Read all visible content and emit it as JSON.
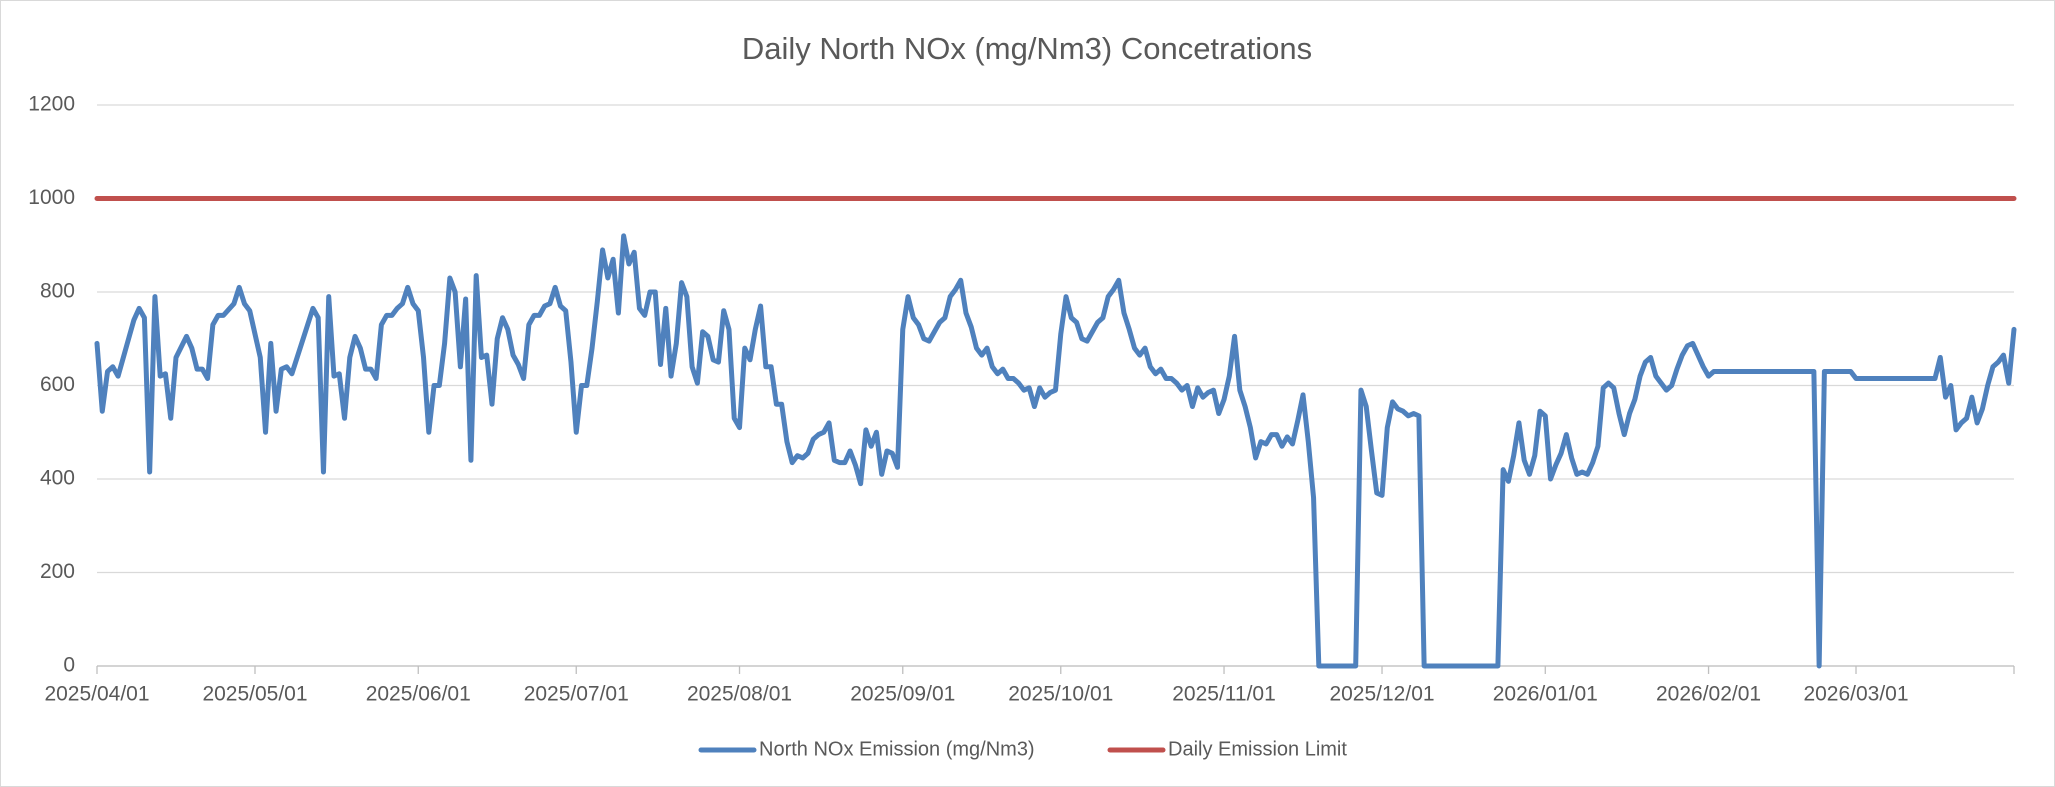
{
  "chart_data": {
    "type": "line",
    "title": "Daily North NOx (mg/Nm3) Concetrations",
    "xlim": [
      "2025/04/01",
      "2026/03/31"
    ],
    "xticks": [
      "2025/04/01",
      "2025/05/01",
      "2025/06/01",
      "2025/07/01",
      "2025/08/01",
      "2025/09/01",
      "2025/10/01",
      "2025/11/01",
      "2025/12/01",
      "2026/01/01",
      "2026/02/01",
      "2026/03/01"
    ],
    "ylim": [
      0,
      1200
    ],
    "yticks": [
      0,
      200,
      400,
      600,
      800,
      1000,
      1200
    ],
    "grid": true,
    "legend": "bottom",
    "series": [
      {
        "name": "North NOx Emission (mg/Nm3)",
        "color": "#4f81bd",
        "x": [
          "2025/04/01",
          "2025/04/02",
          "2025/04/03",
          "2025/04/04",
          "2025/04/05",
          "2025/04/07",
          "2025/04/08",
          "2025/04/09",
          "2025/04/10",
          "2025/04/11",
          "2025/04/12",
          "2025/04/13",
          "2025/04/14",
          "2025/04/15",
          "2025/04/16",
          "2025/04/18",
          "2025/04/19",
          "2025/04/20",
          "2025/04/21",
          "2025/04/22",
          "2025/04/23",
          "2025/04/24",
          "2025/04/25",
          "2025/04/27",
          "2025/04/28",
          "2025/04/29",
          "2025/04/30",
          "2025/05/02",
          "2025/05/03",
          "2025/05/04",
          "2025/05/05",
          "2025/05/06",
          "2025/05/07",
          "2025/05/08",
          "2025/05/09",
          "2025/05/11",
          "2025/05/12",
          "2025/05/13",
          "2025/05/14",
          "2025/05/15",
          "2025/05/16",
          "2025/05/17",
          "2025/05/18",
          "2025/05/19",
          "2025/05/20",
          "2025/05/21",
          "2025/05/22",
          "2025/05/23",
          "2025/05/24",
          "2025/05/25",
          "2025/05/26",
          "2025/05/27",
          "2025/05/28",
          "2025/05/29",
          "2025/05/30",
          "2025/05/31",
          "2025/06/01",
          "2025/06/02",
          "2025/06/03",
          "2025/06/04",
          "2025/06/05",
          "2025/06/06",
          "2025/06/07",
          "2025/06/08",
          "2025/06/09",
          "2025/06/10",
          "2025/06/11",
          "2025/06/12",
          "2025/06/13",
          "2025/06/14",
          "2025/06/15",
          "2025/06/16",
          "2025/06/17",
          "2025/06/18",
          "2025/06/19",
          "2025/06/20",
          "2025/06/21",
          "2025/06/22",
          "2025/06/23",
          "2025/06/24",
          "2025/06/25",
          "2025/06/26",
          "2025/06/27",
          "2025/06/28",
          "2025/06/29",
          "2025/06/30",
          "2025/07/01",
          "2025/07/02",
          "2025/07/03",
          "2025/07/04",
          "2025/07/05",
          "2025/07/06",
          "2025/07/07",
          "2025/07/08",
          "2025/07/09",
          "2025/07/10",
          "2025/07/11",
          "2025/07/12",
          "2025/07/13",
          "2025/07/14",
          "2025/07/15",
          "2025/07/16",
          "2025/07/17",
          "2025/07/18",
          "2025/07/19",
          "2025/07/20",
          "2025/07/21",
          "2025/07/22",
          "2025/07/23",
          "2025/07/24",
          "2025/07/25",
          "2025/07/26",
          "2025/07/27",
          "2025/07/28",
          "2025/07/29",
          "2025/07/30",
          "2025/07/31",
          "2025/08/01",
          "2025/08/02",
          "2025/08/03",
          "2025/08/04",
          "2025/08/05",
          "2025/08/06",
          "2025/08/07",
          "2025/08/08",
          "2025/08/09",
          "2025/08/10",
          "2025/08/11",
          "2025/08/12",
          "2025/08/13",
          "2025/08/14",
          "2025/08/15",
          "2025/08/16",
          "2025/08/17",
          "2025/08/18",
          "2025/08/19",
          "2025/08/20",
          "2025/08/21",
          "2025/08/22",
          "2025/08/23",
          "2025/08/24",
          "2025/08/25",
          "2025/08/26",
          "2025/08/27",
          "2025/08/28",
          "2025/08/29",
          "2025/08/30",
          "2025/08/31",
          "2025/09/01",
          "2025/09/02",
          "2025/09/03",
          "2025/09/04",
          "2025/09/05",
          "2025/09/06",
          "2025/09/07",
          "2025/09/08",
          "2025/09/09",
          "2025/09/10",
          "2025/09/11",
          "2025/09/12",
          "2025/09/13",
          "2025/09/14",
          "2025/09/15",
          "2025/09/16",
          "2025/09/17",
          "2025/09/18",
          "2025/09/19",
          "2025/09/20",
          "2025/09/21",
          "2025/09/22",
          "2025/09/23",
          "2025/09/24",
          "2025/09/25",
          "2025/09/26",
          "2025/09/27",
          "2025/09/28",
          "2025/09/29",
          "2025/09/30",
          "2025/10/01",
          "2025/10/02",
          "2025/10/03",
          "2025/10/04",
          "2025/10/05",
          "2025/10/06",
          "2025/10/07",
          "2025/10/08",
          "2025/10/09",
          "2025/10/10",
          "2025/10/11",
          "2025/10/12",
          "2025/10/13",
          "2025/10/14",
          "2025/10/15",
          "2025/10/16",
          "2025/10/17",
          "2025/10/18",
          "2025/10/19",
          "2025/10/20",
          "2025/10/21",
          "2025/10/22",
          "2025/10/23",
          "2025/10/24",
          "2025/10/25",
          "2025/10/26",
          "2025/10/27",
          "2025/10/28",
          "2025/10/29",
          "2025/10/30",
          "2025/10/31",
          "2025/11/01",
          "2025/11/02",
          "2025/11/03",
          "2025/11/04",
          "2025/11/05",
          "2025/11/06",
          "2025/11/07",
          "2025/11/08",
          "2025/11/09",
          "2025/11/10",
          "2025/11/11",
          "2025/11/12",
          "2025/11/13",
          "2025/11/14",
          "2025/11/15",
          "2025/11/16",
          "2025/11/17",
          "2025/11/18",
          "2025/11/19",
          "2025/11/26",
          "2025/11/27",
          "2025/11/28",
          "2025/11/29",
          "2025/11/30",
          "2025/12/01",
          "2025/12/02",
          "2025/12/03",
          "2025/12/04",
          "2025/12/05",
          "2025/12/06",
          "2025/12/07",
          "2025/12/08",
          "2025/12/09",
          "2025/12/23",
          "2025/12/24",
          "2025/12/25",
          "2025/12/26",
          "2025/12/27",
          "2025/12/28",
          "2025/12/29",
          "2025/12/30",
          "2025/12/31",
          "2026/01/01",
          "2026/01/02",
          "2026/01/03",
          "2026/01/04",
          "2026/01/05",
          "2026/01/06",
          "2026/01/07",
          "2026/01/08",
          "2026/01/09",
          "2026/01/10",
          "2026/01/11",
          "2026/01/12",
          "2026/01/13",
          "2026/01/14",
          "2026/01/15",
          "2026/01/16",
          "2026/01/17",
          "2026/01/18",
          "2026/01/19",
          "2026/01/20",
          "2026/01/21",
          "2026/01/22",
          "2026/01/23",
          "2026/01/24",
          "2026/01/25",
          "2026/01/26",
          "2026/01/27",
          "2026/01/28",
          "2026/01/29",
          "2026/01/30",
          "2026/01/31",
          "2026/02/01",
          "2026/02/02",
          "2026/02/21",
          "2026/02/22",
          "2026/02/23",
          "2026/02/28",
          "2026/03/01",
          "2026/03/16",
          "2026/03/17",
          "2026/03/18",
          "2026/03/19",
          "2026/03/20",
          "2026/03/21",
          "2026/03/22",
          "2026/03/23",
          "2026/03/24",
          "2026/03/25",
          "2026/03/26",
          "2026/03/27",
          "2026/03/28",
          "2026/03/29",
          "2026/03/30",
          "2026/03/31"
        ],
        "values": [
          690,
          545,
          630,
          640,
          620,
          700,
          740,
          765,
          745,
          415,
          790,
          620,
          625,
          530,
          660,
          705,
          680,
          635,
          635,
          615,
          730,
          750,
          750,
          775,
          810,
          775,
          760,
          660,
          500,
          690,
          545,
          635,
          640,
          625,
          660,
          730,
          765,
          745,
          415,
          790,
          620,
          625,
          530,
          660,
          705,
          680,
          635,
          635,
          615,
          730,
          750,
          750,
          765,
          775,
          810,
          775,
          760,
          660,
          500,
          600,
          600,
          690,
          830,
          800,
          640,
          785,
          440,
          835,
          660,
          665,
          560,
          700,
          745,
          720,
          665,
          645,
          615,
          730,
          750,
          750,
          770,
          775,
          810,
          770,
          760,
          650,
          500,
          600,
          600,
          680,
          780,
          890,
          830,
          870,
          755,
          920,
          860,
          885,
          765,
          750,
          800,
          800,
          645,
          765,
          620,
          690,
          820,
          790,
          640,
          605,
          715,
          705,
          655,
          650,
          760,
          720,
          530,
          510,
          680,
          655,
          720,
          770,
          640,
          640,
          560,
          560,
          480,
          435,
          450,
          445,
          455,
          485,
          495,
          500,
          520,
          440,
          435,
          435,
          460,
          430,
          390,
          505,
          470,
          500,
          410,
          460,
          455,
          425,
          720,
          790,
          745,
          730,
          700,
          695,
          715,
          735,
          745,
          790,
          805,
          825,
          755,
          725,
          680,
          665,
          680,
          640,
          625,
          635,
          615,
          615,
          605,
          590,
          595,
          555,
          595,
          575,
          585,
          590,
          710,
          790,
          745,
          735,
          700,
          695,
          715,
          735,
          745,
          790,
          805,
          825,
          755,
          720,
          680,
          665,
          680,
          640,
          625,
          635,
          615,
          615,
          605,
          590,
          600,
          555,
          595,
          575,
          585,
          590,
          540,
          570,
          620,
          705,
          590,
          555,
          510,
          445,
          480,
          475,
          495,
          495,
          470,
          490,
          475,
          525,
          580,
          480,
          360,
          0,
          0,
          590,
          555,
          460,
          370,
          365,
          510,
          565,
          550,
          545,
          535,
          540,
          535,
          0,
          0,
          420,
          395,
          450,
          520,
          440,
          410,
          450,
          545,
          535,
          400,
          430,
          455,
          495,
          445,
          410,
          415,
          410,
          435,
          470,
          595,
          605,
          595,
          540,
          495,
          540,
          570,
          620,
          650,
          660,
          620,
          605,
          590,
          600,
          635,
          665,
          685,
          690,
          665,
          640,
          620,
          630,
          630,
          0,
          630,
          630,
          615,
          615,
          660,
          575,
          600,
          505,
          520,
          530,
          575,
          520,
          550,
          600,
          640,
          650,
          665,
          605,
          720
        ]
      },
      {
        "name": "Daily Emission Limit",
        "color": "#c0504d",
        "x": [
          "2025/04/01",
          "2026/03/31"
        ],
        "values": [
          1000,
          1000
        ]
      }
    ]
  }
}
